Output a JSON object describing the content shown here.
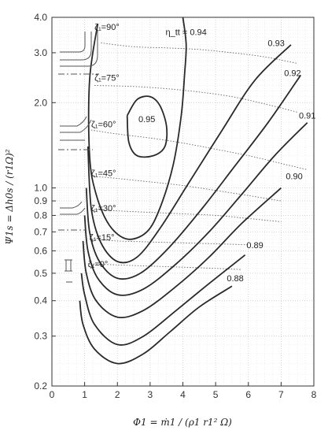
{
  "chart_data": {
    "type": "line",
    "title": "",
    "xlabel": "Φ1  =  ṁ1 / (ρ1 r1² Ω)",
    "ylabel": "Ψ1s  =  Δh0s / (r1Ω)²",
    "xlim": [
      0,
      8
    ],
    "ylim": [
      0.2,
      4.0
    ],
    "yscale": "log",
    "grid": true,
    "x_ticks": [
      "0",
      "1",
      "2",
      "3",
      "4",
      "5",
      "6",
      "7",
      "8"
    ],
    "y_ticks": [
      {
        "v": 0.2,
        "t": "0.2"
      },
      {
        "v": 0.3,
        "t": "0.3"
      },
      {
        "v": 0.4,
        "t": "0.4"
      },
      {
        "v": 0.5,
        "t": "0.5"
      },
      {
        "v": 0.6,
        "t": "0.6"
      },
      {
        "v": 0.7,
        "t": "0.7"
      },
      {
        "v": 0.8,
        "t": "0.8"
      },
      {
        "v": 0.9,
        "t": "0.9"
      },
      {
        "v": 1.0,
        "t": "1.0"
      },
      {
        "v": 2.0,
        "t": "2.0"
      },
      {
        "v": 3.0,
        "t": "3.0"
      },
      {
        "v": 4.0,
        "t": "4.0"
      }
    ],
    "efficiency_contours": [
      {
        "label": "0.95",
        "label_at": [
          2.9,
          1.75
        ],
        "closed": true,
        "points": [
          [
            2.3,
            1.8
          ],
          [
            2.6,
            2.05
          ],
          [
            3.0,
            2.1
          ],
          [
            3.3,
            1.95
          ],
          [
            3.5,
            1.65
          ],
          [
            3.45,
            1.4
          ],
          [
            3.1,
            1.3
          ],
          [
            2.6,
            1.3
          ],
          [
            2.35,
            1.45
          ],
          [
            2.3,
            1.8
          ]
        ]
      },
      {
        "label": "η_tt = 0.94",
        "label_at": [
          4.1,
          3.55
        ],
        "closed": false,
        "points": [
          [
            1.4,
            3.8
          ],
          [
            1.15,
            2.4
          ],
          [
            1.15,
            1.3
          ],
          [
            1.35,
            0.95
          ],
          [
            1.75,
            0.74
          ],
          [
            2.3,
            0.66
          ],
          [
            2.9,
            0.7
          ],
          [
            3.3,
            0.85
          ],
          [
            3.7,
            1.2
          ],
          [
            3.95,
            1.8
          ],
          [
            4.05,
            2.5
          ],
          [
            4.1,
            3.2
          ],
          [
            4.0,
            4.0
          ]
        ]
      },
      {
        "label": "0.93",
        "label_at": [
          6.85,
          3.25
        ],
        "closed": false,
        "points": [
          [
            1.1,
            1.4
          ],
          [
            1.2,
            0.85
          ],
          [
            1.5,
            0.64
          ],
          [
            2.0,
            0.55
          ],
          [
            2.6,
            0.57
          ],
          [
            3.3,
            0.72
          ],
          [
            4.2,
            1.05
          ],
          [
            5.2,
            1.6
          ],
          [
            6.2,
            2.4
          ],
          [
            7.3,
            3.2
          ]
        ]
      },
      {
        "label": "0.92",
        "label_at": [
          7.35,
          2.55
        ],
        "closed": false,
        "points": [
          [
            1.05,
            1.0
          ],
          [
            1.15,
            0.7
          ],
          [
            1.45,
            0.55
          ],
          [
            2.0,
            0.48
          ],
          [
            2.7,
            0.5
          ],
          [
            3.6,
            0.62
          ],
          [
            4.6,
            0.85
          ],
          [
            5.6,
            1.2
          ],
          [
            6.6,
            1.7
          ],
          [
            7.6,
            2.5
          ]
        ]
      },
      {
        "label": "0.91",
        "label_at": [
          7.8,
          1.8
        ],
        "closed": false,
        "points": [
          [
            1.0,
            0.8
          ],
          [
            1.1,
            0.6
          ],
          [
            1.4,
            0.48
          ],
          [
            2.0,
            0.42
          ],
          [
            2.8,
            0.44
          ],
          [
            3.8,
            0.54
          ],
          [
            4.8,
            0.7
          ],
          [
            5.8,
            0.95
          ],
          [
            6.8,
            1.3
          ],
          [
            7.8,
            1.7
          ]
        ]
      },
      {
        "label": "0.90",
        "label_at": [
          7.4,
          1.1
        ],
        "closed": false,
        "points": [
          [
            0.95,
            0.65
          ],
          [
            1.05,
            0.5
          ],
          [
            1.35,
            0.4
          ],
          [
            2.0,
            0.35
          ],
          [
            2.8,
            0.37
          ],
          [
            3.8,
            0.45
          ],
          [
            4.8,
            0.57
          ],
          [
            5.8,
            0.75
          ],
          [
            7.0,
            1.0
          ]
        ]
      },
      {
        "label": "0.89",
        "label_at": [
          6.2,
          0.63
        ],
        "closed": false,
        "points": [
          [
            0.9,
            0.5
          ],
          [
            1.0,
            0.42
          ],
          [
            1.3,
            0.33
          ],
          [
            2.0,
            0.28
          ],
          [
            2.8,
            0.3
          ],
          [
            3.8,
            0.37
          ],
          [
            4.8,
            0.46
          ],
          [
            5.9,
            0.58
          ]
        ]
      },
      {
        "label": "0.88",
        "label_at": [
          5.6,
          0.48
        ],
        "closed": false,
        "points": [
          [
            0.85,
            0.4
          ],
          [
            0.95,
            0.33
          ],
          [
            1.3,
            0.27
          ],
          [
            2.0,
            0.24
          ],
          [
            2.8,
            0.26
          ],
          [
            3.6,
            0.31
          ],
          [
            4.5,
            0.38
          ],
          [
            5.5,
            0.45
          ]
        ]
      }
    ],
    "blade_angle_lines": [
      {
        "label": "ζ₁=90°",
        "label_at": [
          1.3,
          3.7
        ],
        "points": [
          [
            1.5,
            3.25
          ],
          [
            2.5,
            3.15
          ],
          [
            3.5,
            3.12
          ],
          [
            4.5,
            3.08
          ],
          [
            5.5,
            3.0
          ],
          [
            6.5,
            2.9
          ],
          [
            7.5,
            2.75
          ]
        ]
      },
      {
        "label": "ζ₁=75°",
        "label_at": [
          1.3,
          2.45
        ],
        "points": [
          [
            1.3,
            2.3
          ],
          [
            2.5,
            2.28
          ],
          [
            3.5,
            2.24
          ],
          [
            4.5,
            2.18
          ],
          [
            5.5,
            2.1
          ],
          [
            6.5,
            1.98
          ],
          [
            7.5,
            1.85
          ]
        ]
      },
      {
        "label": "ζ₁=60°",
        "label_at": [
          1.2,
          1.68
        ],
        "points": [
          [
            1.2,
            1.6
          ],
          [
            2.0,
            1.55
          ],
          [
            3.0,
            1.5
          ],
          [
            4.0,
            1.44
          ],
          [
            5.0,
            1.37
          ],
          [
            6.0,
            1.3
          ],
          [
            7.0,
            1.22
          ],
          [
            7.8,
            1.16
          ]
        ]
      },
      {
        "label": "ζ₁=45°",
        "label_at": [
          1.2,
          1.13
        ],
        "points": [
          [
            1.2,
            1.1
          ],
          [
            2.0,
            1.08
          ],
          [
            3.0,
            1.05
          ],
          [
            4.0,
            1.02
          ],
          [
            5.0,
            0.98
          ],
          [
            6.0,
            0.94
          ],
          [
            7.0,
            0.9
          ]
        ]
      },
      {
        "label": "ζ₁=30°",
        "label_at": [
          1.2,
          0.85
        ],
        "points": [
          [
            1.2,
            0.84
          ],
          [
            2.0,
            0.83
          ],
          [
            3.0,
            0.82
          ],
          [
            4.0,
            0.81
          ],
          [
            5.0,
            0.8
          ],
          [
            6.0,
            0.78
          ],
          [
            7.0,
            0.76
          ]
        ]
      },
      {
        "label": "ζ₁=15°",
        "label_at": [
          1.15,
          0.67
        ],
        "points": [
          [
            1.15,
            0.66
          ],
          [
            2.0,
            0.65
          ],
          [
            3.0,
            0.645
          ],
          [
            4.0,
            0.64
          ],
          [
            5.0,
            0.635
          ],
          [
            6.0,
            0.63
          ]
        ]
      },
      {
        "label": "ζ₁=0°",
        "label_at": [
          1.1,
          0.54
        ],
        "points": [
          [
            1.1,
            0.54
          ],
          [
            2.0,
            0.535
          ],
          [
            3.0,
            0.53
          ],
          [
            4.0,
            0.525
          ],
          [
            5.0,
            0.52
          ],
          [
            5.8,
            0.515
          ]
        ]
      }
    ]
  }
}
